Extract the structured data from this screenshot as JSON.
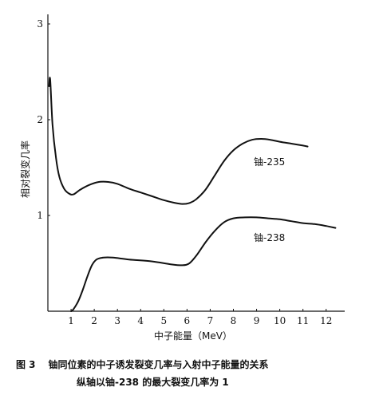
{
  "chart_data": {
    "type": "line",
    "xlabel": "中子能量（MeV）",
    "ylabel": "相对裂变几率",
    "xlim": [
      0,
      12.8
    ],
    "ylim": [
      0,
      3.1
    ],
    "x_ticks": [
      1,
      2,
      3,
      4,
      5,
      6,
      7,
      8,
      9,
      10,
      11,
      12
    ],
    "y_ticks": [
      1,
      2,
      3
    ],
    "grid": false,
    "series": [
      {
        "name": "铀-235",
        "points": [
          [
            0.05,
            2.35
          ],
          [
            0.1,
            2.42
          ],
          [
            0.2,
            1.95
          ],
          [
            0.35,
            1.6
          ],
          [
            0.5,
            1.4
          ],
          [
            0.7,
            1.28
          ],
          [
            0.9,
            1.23
          ],
          [
            1.1,
            1.22
          ],
          [
            1.4,
            1.27
          ],
          [
            1.8,
            1.32
          ],
          [
            2.2,
            1.35
          ],
          [
            2.6,
            1.35
          ],
          [
            3.0,
            1.33
          ],
          [
            3.5,
            1.28
          ],
          [
            4.0,
            1.24
          ],
          [
            4.5,
            1.2
          ],
          [
            5.0,
            1.16
          ],
          [
            5.5,
            1.13
          ],
          [
            5.8,
            1.12
          ],
          [
            6.1,
            1.13
          ],
          [
            6.4,
            1.17
          ],
          [
            6.8,
            1.27
          ],
          [
            7.2,
            1.42
          ],
          [
            7.6,
            1.57
          ],
          [
            8.0,
            1.68
          ],
          [
            8.4,
            1.75
          ],
          [
            8.8,
            1.79
          ],
          [
            9.2,
            1.8
          ],
          [
            9.6,
            1.79
          ],
          [
            10.0,
            1.77
          ],
          [
            10.5,
            1.75
          ],
          [
            11.0,
            1.73
          ],
          [
            11.2,
            1.72
          ]
        ]
      },
      {
        "name": "铀-238",
        "points": [
          [
            1.0,
            0.0
          ],
          [
            1.1,
            0.02
          ],
          [
            1.3,
            0.1
          ],
          [
            1.5,
            0.22
          ],
          [
            1.7,
            0.36
          ],
          [
            1.9,
            0.48
          ],
          [
            2.1,
            0.54
          ],
          [
            2.4,
            0.56
          ],
          [
            2.8,
            0.56
          ],
          [
            3.5,
            0.54
          ],
          [
            4.5,
            0.52
          ],
          [
            5.3,
            0.49
          ],
          [
            5.8,
            0.48
          ],
          [
            6.1,
            0.5
          ],
          [
            6.4,
            0.58
          ],
          [
            6.8,
            0.72
          ],
          [
            7.2,
            0.84
          ],
          [
            7.6,
            0.93
          ],
          [
            8.0,
            0.97
          ],
          [
            8.5,
            0.98
          ],
          [
            9.0,
            0.98
          ],
          [
            9.5,
            0.97
          ],
          [
            10.0,
            0.96
          ],
          [
            10.5,
            0.94
          ],
          [
            11.0,
            0.92
          ],
          [
            11.5,
            0.91
          ],
          [
            12.0,
            0.89
          ],
          [
            12.4,
            0.87
          ]
        ]
      }
    ],
    "caption": {
      "figure": "图 3",
      "line1": "铀同位素的中子诱发裂变几率与入射中子能量的关系",
      "line2": "纵轴以铀-238 的最大裂变几率为 1"
    }
  }
}
